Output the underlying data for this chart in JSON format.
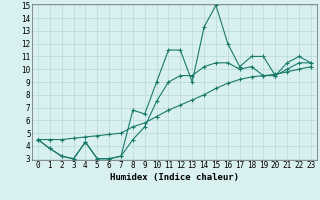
{
  "xlabel": "Humidex (Indice chaleur)",
  "x": [
    0,
    1,
    2,
    3,
    4,
    5,
    6,
    7,
    8,
    9,
    10,
    11,
    12,
    13,
    14,
    15,
    16,
    17,
    18,
    19,
    20,
    21,
    22,
    23
  ],
  "line1": [
    4.5,
    3.8,
    3.2,
    3.0,
    4.3,
    3.0,
    3.0,
    3.2,
    6.8,
    6.5,
    9.0,
    11.5,
    11.5,
    9.0,
    13.3,
    15.0,
    12.0,
    10.2,
    11.0,
    11.0,
    9.5,
    10.5,
    11.0,
    10.5
  ],
  "line2": [
    4.5,
    3.8,
    3.2,
    3.0,
    4.3,
    3.0,
    3.0,
    3.2,
    4.5,
    5.5,
    7.5,
    9.0,
    9.5,
    9.5,
    10.2,
    10.5,
    10.5,
    10.0,
    10.2,
    9.5,
    9.5,
    10.0,
    10.5,
    10.5
  ],
  "line3": [
    4.5,
    4.5,
    4.5,
    4.6,
    4.7,
    4.8,
    4.9,
    5.0,
    5.5,
    5.8,
    6.3,
    6.8,
    7.2,
    7.6,
    8.0,
    8.5,
    8.9,
    9.2,
    9.4,
    9.5,
    9.6,
    9.8,
    10.0,
    10.2
  ],
  "line_color": "#1a7a6a",
  "bg_color": "#d8f0f0",
  "grid_color": "#b8d8d8",
  "ylim": [
    3,
    15
  ],
  "xlim": [
    -0.5,
    23.5
  ],
  "yticks": [
    3,
    4,
    5,
    6,
    7,
    8,
    9,
    10,
    11,
    12,
    13,
    14,
    15
  ],
  "xticks": [
    0,
    1,
    2,
    3,
    4,
    5,
    6,
    7,
    8,
    9,
    10,
    11,
    12,
    13,
    14,
    15,
    16,
    17,
    18,
    19,
    20,
    21,
    22,
    23
  ],
  "tick_fontsize": 5.5,
  "xlabel_fontsize": 6.5,
  "marker": "+"
}
